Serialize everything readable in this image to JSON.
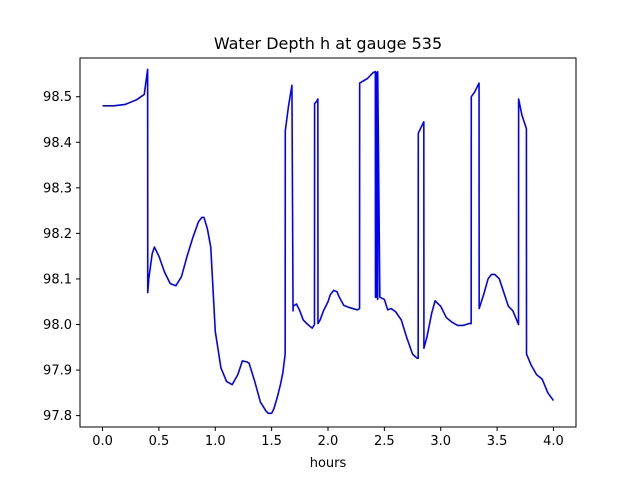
{
  "chart_data": {
    "type": "line",
    "title": "Water Depth h at gauge 535",
    "xlabel": "hours",
    "ylabel": "",
    "xlim": [
      -0.2,
      4.2
    ],
    "ylim": [
      97.775,
      98.585
    ],
    "xticks": [
      0.0,
      0.5,
      1.0,
      1.5,
      2.0,
      2.5,
      3.0,
      3.5,
      4.0
    ],
    "xtick_labels": [
      "0.0",
      "0.5",
      "1.0",
      "1.5",
      "2.0",
      "2.5",
      "3.0",
      "3.5",
      "4.0"
    ],
    "yticks": [
      97.8,
      97.9,
      98.0,
      98.1,
      98.2,
      98.3,
      98.4,
      98.5
    ],
    "ytick_labels": [
      "97.8",
      "97.9",
      "98.0",
      "98.1",
      "98.2",
      "98.3",
      "98.4",
      "98.5"
    ],
    "grid": false,
    "color": "#0000ff",
    "series": [
      {
        "x": [
          0.0,
          0.1,
          0.2,
          0.3,
          0.37,
          0.4,
          0.401,
          0.41,
          0.44,
          0.46,
          0.5,
          0.55,
          0.6,
          0.65,
          0.7,
          0.75,
          0.8,
          0.85,
          0.88,
          0.9,
          0.93,
          0.96,
          1.0,
          1.05,
          1.1,
          1.15,
          1.2,
          1.24,
          1.28,
          1.3,
          1.35,
          1.4,
          1.45,
          1.47,
          1.5,
          1.52,
          1.55,
          1.58,
          1.6,
          1.62,
          1.621,
          1.65,
          1.68,
          1.69,
          1.691,
          1.72,
          1.75,
          1.78,
          1.82,
          1.86,
          1.88,
          1.881,
          1.9,
          1.91,
          1.911,
          1.93,
          1.96,
          2.0,
          2.02,
          2.05,
          2.08,
          2.1,
          2.14,
          2.18,
          2.22,
          2.26,
          2.28,
          2.281,
          2.35,
          2.4,
          2.42,
          2.421,
          2.43,
          2.431,
          2.44,
          2.441,
          2.44,
          2.441,
          2.46,
          2.5,
          2.53,
          2.56,
          2.6,
          2.65,
          2.7,
          2.75,
          2.79,
          2.8,
          2.801,
          2.84,
          2.85,
          2.851,
          2.88,
          2.9,
          2.92,
          2.95,
          3.0,
          3.05,
          3.1,
          3.15,
          3.2,
          3.25,
          3.27,
          3.271,
          3.3,
          3.34,
          3.341,
          3.38,
          3.42,
          3.45,
          3.48,
          3.52,
          3.56,
          3.6,
          3.64,
          3.69,
          3.691,
          3.72,
          3.76,
          3.761,
          3.8,
          3.85,
          3.9,
          3.95,
          4.0
        ],
        "y": [
          98.48,
          98.48,
          98.483,
          98.493,
          98.505,
          98.56,
          98.07,
          98.1,
          98.155,
          98.17,
          98.15,
          98.115,
          98.09,
          98.085,
          98.105,
          98.15,
          98.19,
          98.225,
          98.235,
          98.235,
          98.21,
          98.17,
          97.985,
          97.905,
          97.875,
          97.868,
          97.89,
          97.92,
          97.918,
          97.915,
          97.875,
          97.83,
          97.81,
          97.805,
          97.805,
          97.815,
          97.84,
          97.87,
          97.895,
          97.935,
          98.425,
          98.48,
          98.525,
          98.03,
          98.04,
          98.045,
          98.03,
          98.01,
          98.0,
          97.992,
          98.0,
          98.485,
          98.49,
          98.495,
          98.002,
          98.01,
          98.03,
          98.05,
          98.065,
          98.075,
          98.072,
          98.06,
          98.042,
          98.038,
          98.035,
          98.032,
          98.035,
          98.53,
          98.54,
          98.553,
          98.555,
          98.06,
          98.06,
          98.552,
          98.555,
          98.057,
          98.055,
          98.555,
          98.06,
          98.055,
          98.032,
          98.035,
          98.028,
          98.01,
          97.97,
          97.935,
          97.926,
          97.926,
          98.42,
          98.44,
          98.445,
          97.948,
          97.975,
          98.0,
          98.025,
          98.052,
          98.04,
          98.015,
          98.005,
          97.998,
          97.998,
          98.002,
          98.002,
          98.5,
          98.51,
          98.53,
          98.035,
          98.065,
          98.1,
          98.11,
          98.11,
          98.1,
          98.07,
          98.04,
          98.03,
          98.0,
          98.495,
          98.46,
          98.43,
          97.935,
          97.912,
          97.89,
          97.88,
          97.85,
          97.833
        ]
      }
    ]
  }
}
